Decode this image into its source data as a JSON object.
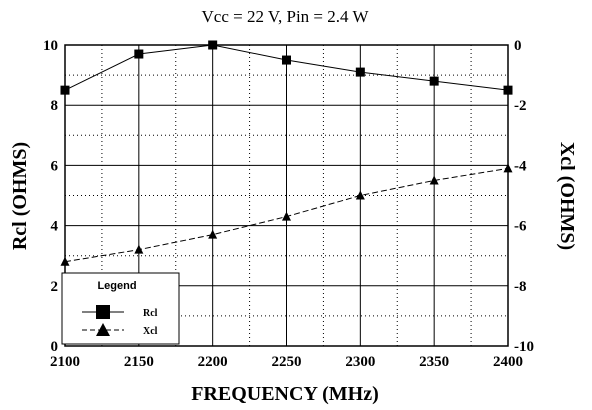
{
  "chart_data": {
    "type": "line",
    "title": "Vcc = 22 V, Pin = 2.4 W",
    "xlabel": "FREQUENCY (MHz)",
    "ylabel_left": "Rcl  (OHMS)",
    "ylabel_right": "Xcl (OHMS)",
    "x": [
      2100,
      2150,
      2200,
      2250,
      2300,
      2350,
      2400
    ],
    "xlim": [
      2100,
      2400
    ],
    "ylim_left": [
      0,
      10
    ],
    "ylim_right": [
      -10,
      0
    ],
    "xticks": [
      2100,
      2150,
      2200,
      2250,
      2300,
      2350,
      2400
    ],
    "yticks_left": [
      0,
      2,
      4,
      6,
      8,
      10
    ],
    "yticks_right": [
      -10,
      -8,
      -6,
      -4,
      -2,
      0
    ],
    "grid": "solid major, dotted minor",
    "legend": {
      "title": "Legend",
      "placement": "bottom-left"
    },
    "series": [
      {
        "name": "Rcl",
        "axis": "left",
        "marker": "square",
        "line": "solid",
        "values": [
          8.5,
          9.7,
          10.0,
          9.5,
          9.1,
          8.8,
          8.5
        ]
      },
      {
        "name": "Xcl",
        "axis": "right",
        "marker": "triangle",
        "line": "dashed",
        "values": [
          -7.2,
          -6.8,
          -6.3,
          -5.7,
          -5.0,
          -4.5,
          -4.1
        ]
      }
    ]
  }
}
